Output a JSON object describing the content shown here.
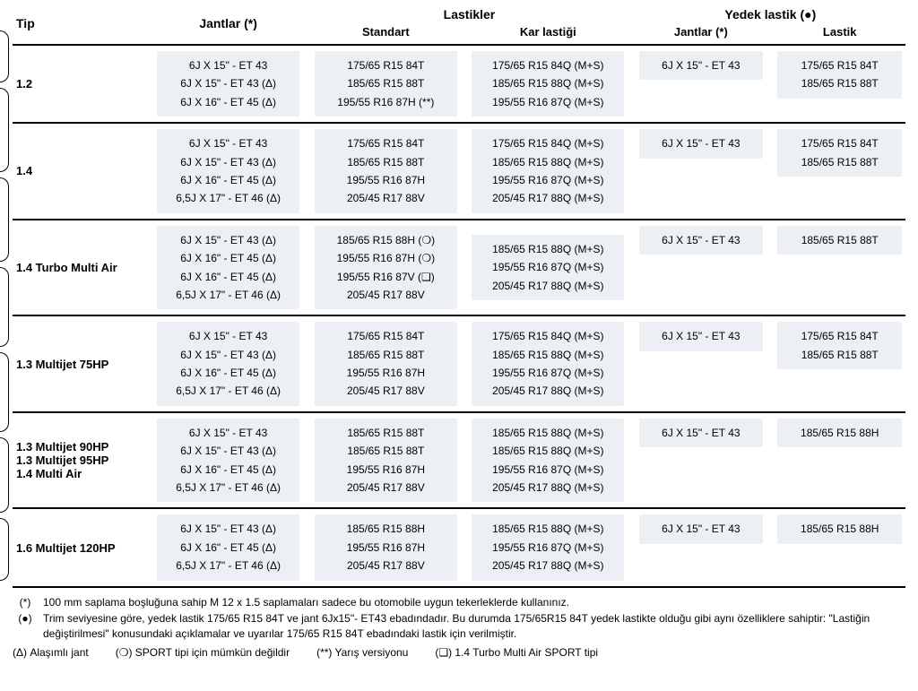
{
  "headers": {
    "tip": "Tip",
    "jantlar": "Jantlar (*)",
    "lastikler": "Lastikler",
    "standart": "Standart",
    "kar": "Kar lastiği",
    "yedek": "Yedek lastik (●)",
    "yjant": "Jantlar (*)",
    "ylast": "Lastik"
  },
  "rows": [
    {
      "tip": "1.2",
      "jant": "6J X 15\" - ET 43\n6J X 15\" - ET 43 (Δ)\n6J X 16\" - ET 45 (Δ)",
      "std": "175/65 R15 84T\n185/65 R15 88T\n195/55 R16 87H (**)",
      "kar": "175/65 R15 84Q (M+S)\n185/65 R15 88Q (M+S)\n195/55 R16 87Q (M+S)",
      "yj": "6J X 15\" - ET 43",
      "yl": "175/65 R15 84T\n185/65 R15 88T"
    },
    {
      "tip": "1.4",
      "jant": "6J X 15\" - ET 43\n6J X 15\" - ET 43 (Δ)\n6J X 16\" - ET 45 (Δ)\n6,5J X 17\" - ET 46 (Δ)",
      "std": "175/65 R15 84T\n185/65 R15 88T\n195/55 R16 87H\n205/45 R17 88V",
      "kar": "175/65 R15 84Q (M+S)\n185/65 R15 88Q (M+S)\n195/55 R16 87Q (M+S)\n205/45 R17 88Q (M+S)",
      "yj": "6J X 15\" - ET 43",
      "yl": "175/65 R15 84T\n185/65 R15 88T"
    },
    {
      "tip": "1.4 Turbo Multi Air",
      "jant": "6J X 15\" - ET 43 (Δ)\n6J X 16\" - ET 45 (Δ)\n6J X 16\" - ET 45 (Δ)\n6,5J X 17\" - ET 46 (Δ)",
      "std": "185/65 R15 88H (❍)\n195/55 R16 87H (❍)\n195/55 R16 87V (❏)\n205/45 R17 88V",
      "kar": "185/65 R15 88Q (M+S)\n195/55 R16 87Q (M+S)\n205/45 R17 88Q (M+S)",
      "yj": "6J X 15\" - ET 43",
      "yl": "185/65 R15 88T"
    },
    {
      "tip": "1.3 Multijet 75HP",
      "jant": "6J X 15\" - ET 43\n6J X 15\" - ET 43 (Δ)\n6J X 16\" - ET 45 (Δ)\n6,5J X 17\" - ET 46 (Δ)",
      "std": "175/65 R15 84T\n185/65 R15 88T\n195/55 R16 87H\n205/45 R17 88V",
      "kar": "175/65 R15 84Q (M+S)\n185/65 R15 88Q (M+S)\n195/55 R16 87Q (M+S)\n205/45 R17 88Q (M+S)",
      "yj": "6J X 15\" - ET 43",
      "yl": "175/65 R15 84T\n185/65 R15 88T"
    },
    {
      "tip": "1.3 Multijet 90HP\n1.3 Multijet 95HP\n1.4 Multi Air",
      "jant": "6J X 15\" - ET 43\n6J X 15\" - ET 43 (Δ)\n6J X 16\" - ET 45 (Δ)\n6,5J X 17\" - ET 46 (Δ)",
      "std": "185/65 R15 88T\n185/65 R15 88T\n195/55 R16 87H\n205/45 R17 88V",
      "kar": "185/65 R15 88Q (M+S)\n185/65 R15 88Q (M+S)\n195/55 R16 87Q (M+S)\n205/45 R17 88Q (M+S)",
      "yj": "6J X 15\" - ET 43",
      "yl": "185/65 R15 88H"
    },
    {
      "tip": "1.6 Multijet 120HP",
      "jant": "6J X 15\" - ET 43 (Δ)\n6J X 16\" - ET 45 (Δ)\n6,5J X 17\" - ET 46 (Δ)",
      "std": "185/65 R15 88H\n195/55 R16 87H\n205/45 R17 88V",
      "kar": "185/65 R15 88Q (M+S)\n195/55 R16 87Q (M+S)\n205/45 R17 88Q (M+S)",
      "yj": "6J X 15\" - ET 43",
      "yl": "185/65 R15 88H"
    }
  ],
  "tabPositions": [
    26,
    90,
    190,
    290,
    385,
    480,
    570
  ],
  "footnotes": {
    "star": "100 mm saplama boşluğuna sahip M 12 x 1.5 saplamaları sadece bu otomobile uygun tekerleklerde kullanınız.",
    "bullet": "Trim seviyesine göre, yedek lastik 175/65 R15 84T ve jant 6Jx15\"- ET43 ebadındadır. Bu durumda 175/65R15 84T yedek lastikte olduğu gibi aynı özelliklere sahiptir: \"Lastiğin değiştirilmesi\" konusundaki açıklamalar ve uyarılar 175/65 R15 84T ebadındaki lastik için verilmiştir.",
    "sym_star": "(*)",
    "sym_bullet": "(●)",
    "line2": [
      {
        "sym": "(Δ)",
        "txt": "Alaşımlı jant"
      },
      {
        "sym": "(❍)",
        "txt": "SPORT tipi için mümkün değildir"
      },
      {
        "sym": "(**)",
        "txt": "Yarış versiyonu"
      },
      {
        "sym": "(❏)",
        "txt": "1.4 Turbo Multi Air SPORT tipi"
      }
    ]
  },
  "colWidths": {
    "tip": 150,
    "jant": 160,
    "std": 160,
    "kar": 170,
    "yj": 140,
    "yl": 140,
    "gap": 8
  }
}
